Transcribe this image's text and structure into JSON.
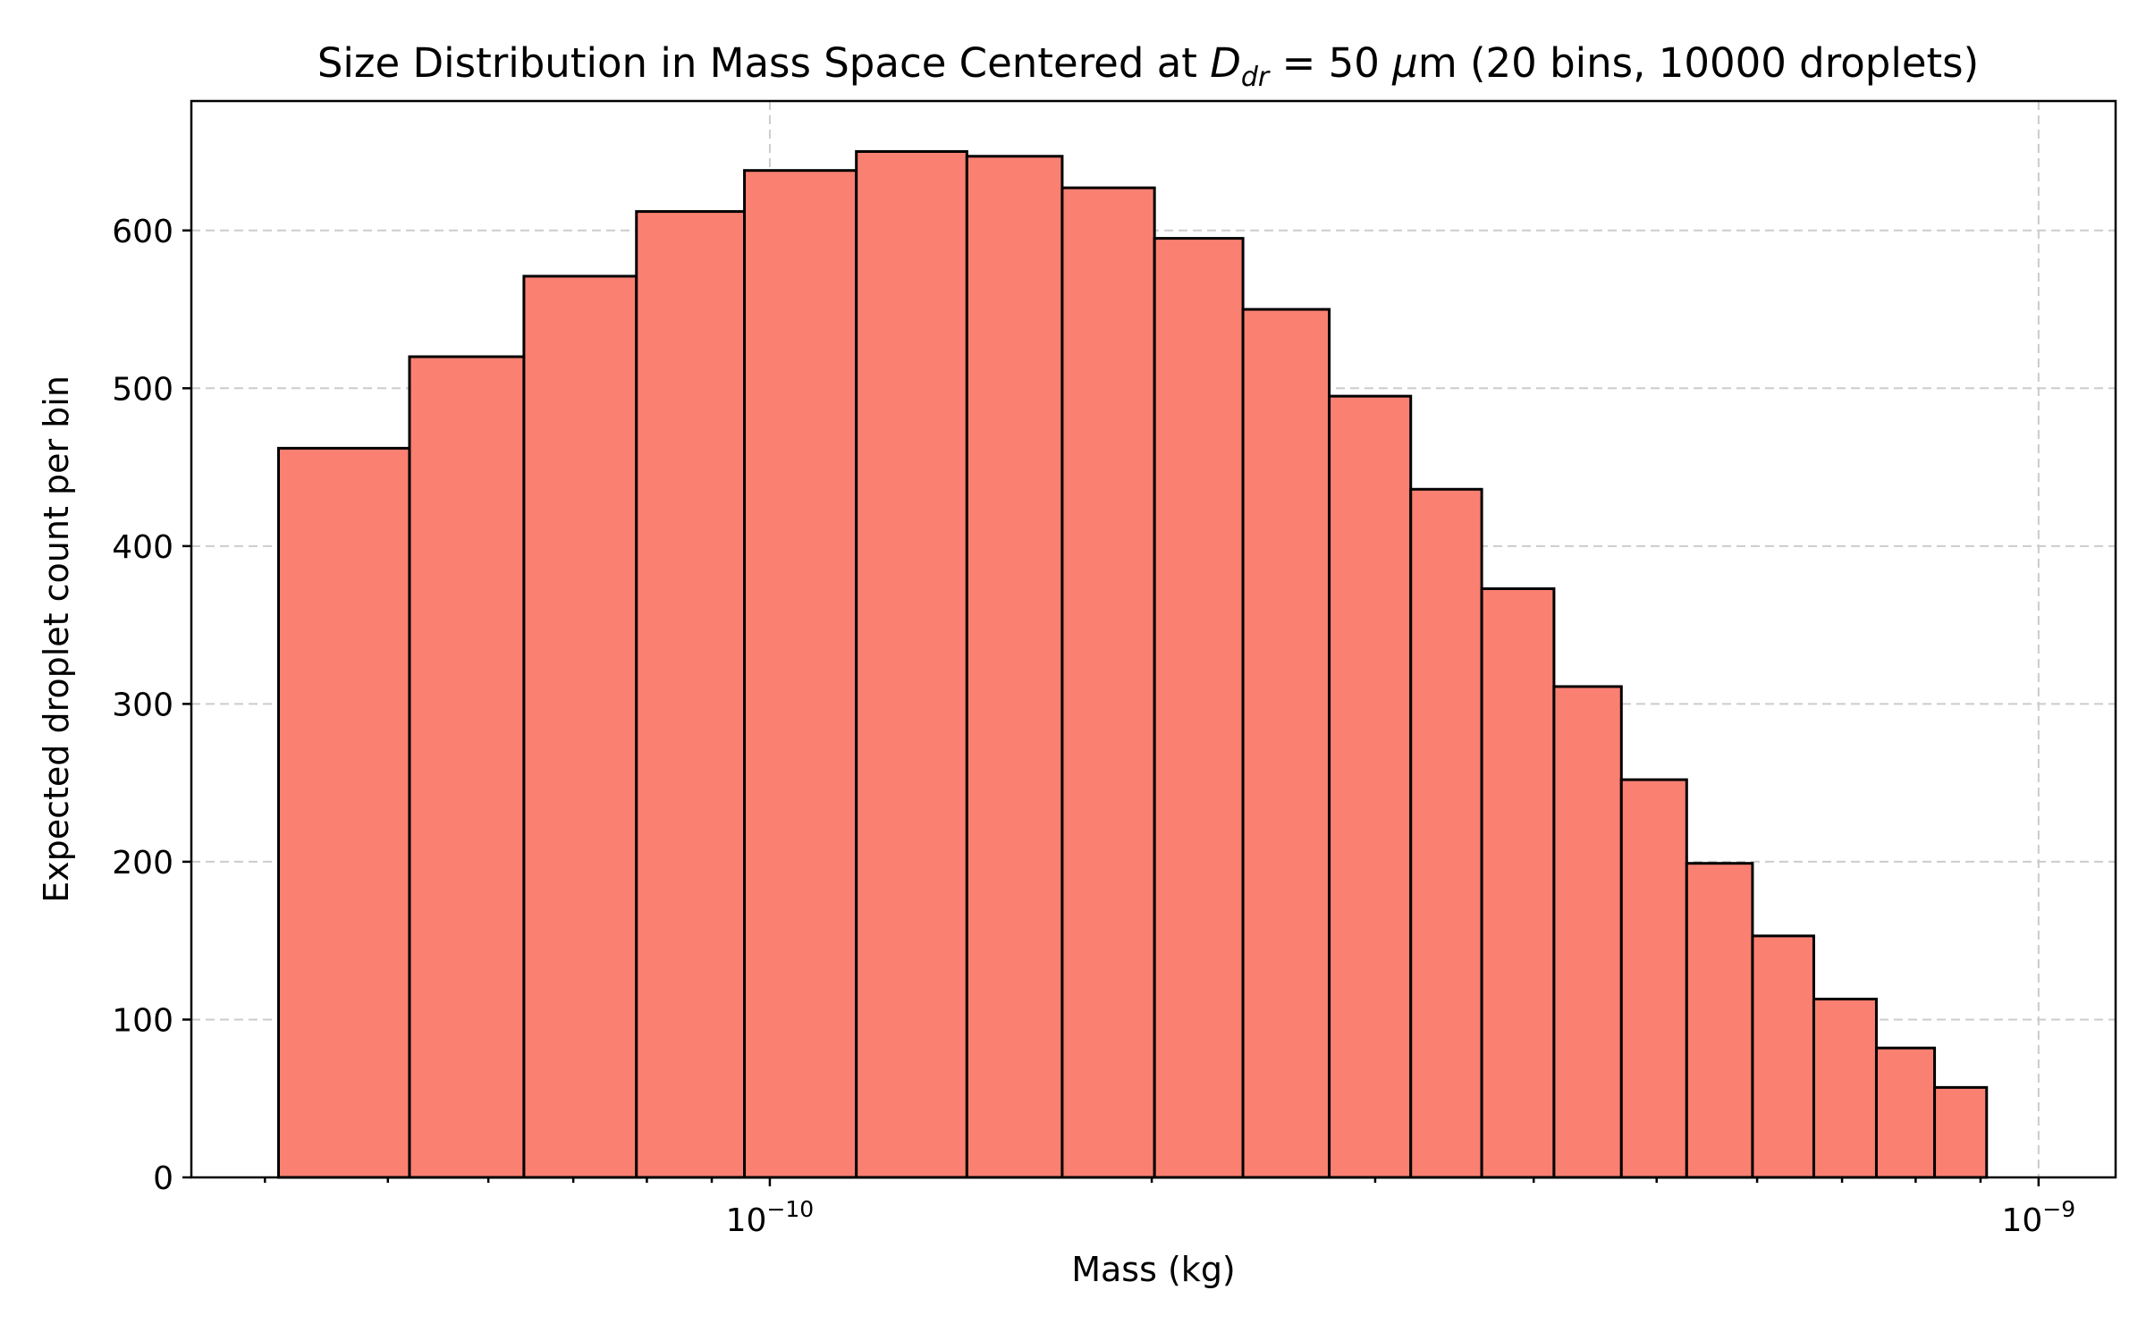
{
  "chart_data": {
    "type": "bar",
    "title_parts": {
      "pre": "Size Distribution in Mass Space Centered at ",
      "sym": "D",
      "sub": "dr",
      "mid": " = 50 ",
      "mu": "μ",
      "post": "m (20 bins, 10000 droplets)"
    },
    "xlabel": "Mass (kg)",
    "ylabel": "Expected droplet count per bin",
    "xscale": "log",
    "xlim": [
      3.5e-11,
      1.15e-09
    ],
    "ylim": [
      0,
      682
    ],
    "grid": true,
    "bar_color": "#fa8072",
    "bar_edge_color": "#000000",
    "y_ticks": [
      0,
      100,
      200,
      300,
      400,
      500,
      600
    ],
    "x_major_ticks": [
      {
        "value": 1e-10,
        "base": "10",
        "exp": "−10"
      },
      {
        "value": 1e-09,
        "base": "10",
        "exp": "−9"
      }
    ],
    "bin_edges": [
      4.1e-11,
      5.2e-11,
      6.4e-11,
      7.85e-11,
      9.55e-11,
      1.17e-10,
      1.43e-10,
      1.7e-10,
      2.01e-10,
      2.36e-10,
      2.76e-10,
      3.2e-10,
      3.64e-10,
      4.15e-10,
      4.69e-10,
      5.28e-10,
      5.95e-10,
      6.65e-10,
      7.45e-10,
      8.28e-10,
      9.1e-10
    ],
    "values": [
      462,
      520,
      571,
      612,
      638,
      650,
      647,
      627,
      595,
      550,
      495,
      436,
      373,
      311,
      252,
      199,
      153,
      113,
      82,
      57
    ]
  }
}
